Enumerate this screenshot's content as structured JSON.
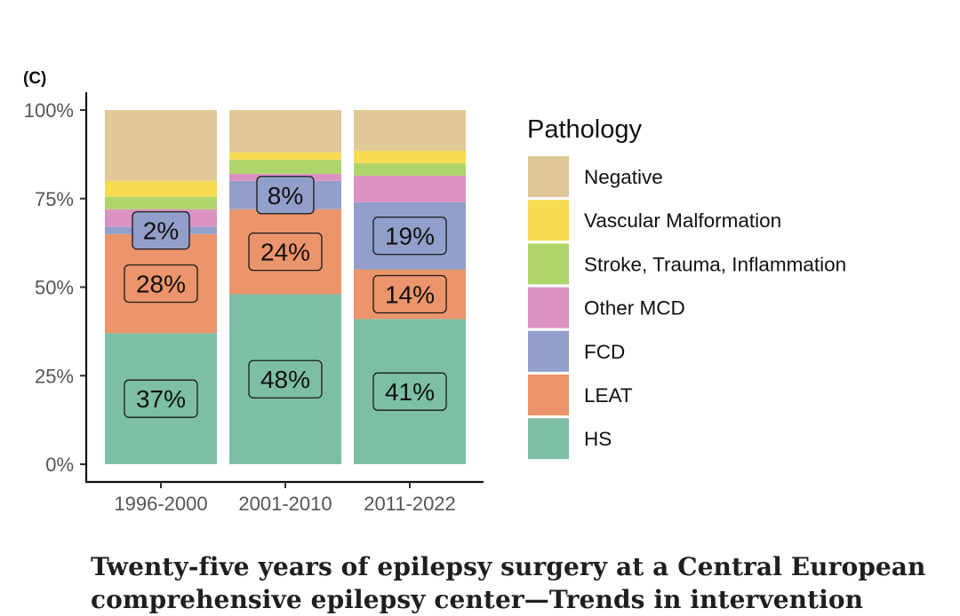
{
  "panel_label": "(C)",
  "caption": {
    "line1": "Twenty-five years of epilepsy surgery at a Central European",
    "line2": "comprehensive epilepsy center—Trends in intervention"
  },
  "chart_data": {
    "type": "bar",
    "stacked": true,
    "categories": [
      "1996-2000",
      "2001-2010",
      "2011-2022"
    ],
    "y_ticks": [
      "0%",
      "25%",
      "50%",
      "75%",
      "100%"
    ],
    "ylim": [
      0,
      100
    ],
    "legend_title": "Pathology",
    "legend_position": "right",
    "series": [
      {
        "name": "HS",
        "color": "#7cbfa5",
        "values": [
          37,
          48,
          41
        ],
        "labels": [
          "37%",
          "48%",
          "41%"
        ]
      },
      {
        "name": "LEAT",
        "color": "#ec946b",
        "values": [
          28,
          24,
          14
        ],
        "labels": [
          "28%",
          "24%",
          "14%"
        ]
      },
      {
        "name": "FCD",
        "color": "#919fca",
        "values": [
          2,
          8,
          19
        ],
        "labels": [
          "2%",
          "8%",
          "19%"
        ]
      },
      {
        "name": "Other MCD",
        "color": "#dc91c3",
        "values": [
          5,
          2,
          7.5
        ],
        "labels": [
          "",
          "",
          ""
        ]
      },
      {
        "name": "Stroke, Trauma, Inflammation",
        "color": "#afd56a",
        "values": [
          3.5,
          4,
          3.5
        ],
        "labels": [
          "",
          "",
          ""
        ]
      },
      {
        "name": "Vascular Malformation",
        "color": "#f7db51",
        "values": [
          4.5,
          2,
          3.5
        ],
        "labels": [
          "",
          "",
          ""
        ]
      },
      {
        "name": "Negative",
        "color": "#e1c897",
        "values": [
          20,
          12,
          11.5
        ],
        "labels": [
          "",
          "",
          ""
        ]
      }
    ]
  }
}
